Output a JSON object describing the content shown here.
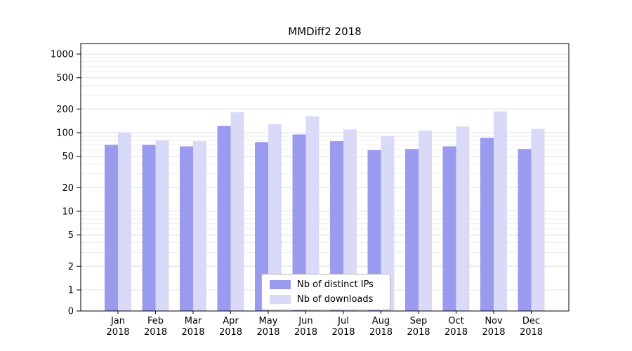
{
  "chart_data": {
    "type": "bar",
    "title": "MMDiff2 2018",
    "categories": [
      "Jan",
      "Feb",
      "Mar",
      "Apr",
      "May",
      "Jun",
      "Jul",
      "Aug",
      "Sep",
      "Oct",
      "Nov",
      "Dec"
    ],
    "year_label": "2018",
    "series": [
      {
        "name": "Nb of distinct IPs",
        "color": "#9a9aee",
        "values": [
          70,
          70,
          67,
          122,
          76,
          95,
          78,
          60,
          62,
          67,
          86,
          62
        ]
      },
      {
        "name": "Nb of downloads",
        "color": "#d9d9f8",
        "values": [
          101,
          80,
          78,
          183,
          128,
          162,
          110,
          90,
          106,
          120,
          187,
          112
        ]
      }
    ],
    "yscale": "symlog",
    "yticks": [
      0,
      1,
      2,
      5,
      10,
      20,
      50,
      100,
      200,
      500,
      1000
    ],
    "ylim": [
      0,
      1300
    ],
    "grid": true,
    "legend_position": "lower center"
  }
}
